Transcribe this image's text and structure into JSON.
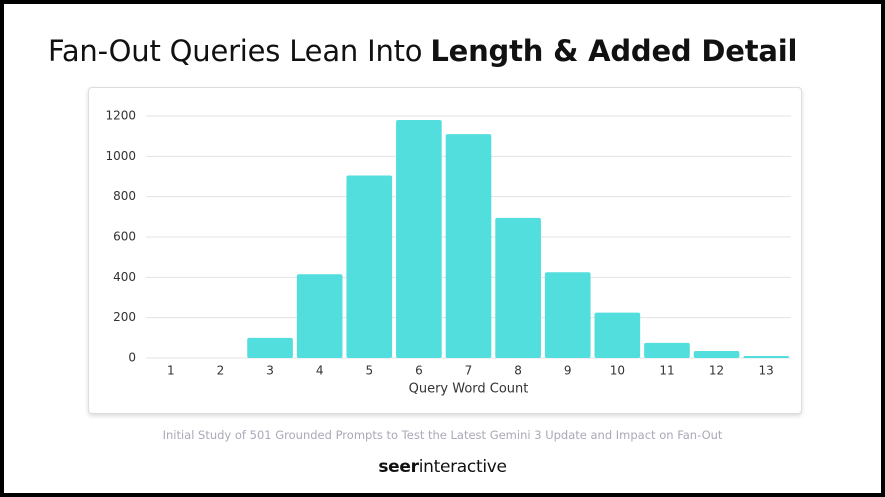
{
  "chart_data": {
    "type": "bar",
    "title": {
      "plain": "Fan-Out Queries Lean Into",
      "bold": "Length & Added Detail"
    },
    "categories": [
      "1",
      "2",
      "3",
      "4",
      "5",
      "6",
      "7",
      "8",
      "9",
      "10",
      "11",
      "12",
      "13"
    ],
    "values": [
      0,
      0,
      100,
      415,
      905,
      1180,
      1110,
      695,
      425,
      225,
      75,
      35,
      10
    ],
    "color": "#52dedc",
    "x_label": "Query Word Count",
    "ylim": [
      0,
      1200
    ],
    "yticks": [
      0,
      200,
      400,
      600,
      800,
      1000,
      1200
    ],
    "grid": true
  },
  "footer": {
    "caption": "Initial Study of 501 Grounded Prompts to Test the Latest Gemini 3 Update and Impact on Fan-Out",
    "brand_bold": "seer",
    "brand_regular": "interactive"
  }
}
